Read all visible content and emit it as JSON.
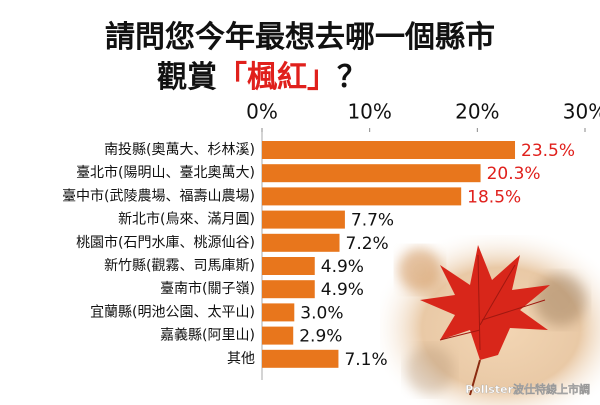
{
  "chart_data": {
    "type": "hbar",
    "title": [
      {
        "text": "請問您今年最想去哪一個縣市",
        "color": "#111111"
      },
      {
        "text": "觀賞",
        "color": "#111111"
      },
      {
        "text": "「楓紅」",
        "color": "#e0201c"
      },
      {
        "text": "？",
        "color": "#111111"
      }
    ],
    "categories": [
      "南投縣(奧萬大、杉林溪)",
      "臺北市(陽明山、臺北奧萬大)",
      "臺中市(武陵農場、福壽山農場)",
      "新北市(烏來、滿月圓)",
      "桃園市(石門水庫、桃源仙谷)",
      "新竹縣(觀霧、司馬庫斯)",
      "臺南市(關子嶺)",
      "宜蘭縣(明池公園、太平山)",
      "嘉義縣(阿里山)",
      "其他"
    ],
    "values": [
      23.5,
      20.3,
      18.5,
      7.7,
      7.2,
      4.9,
      4.9,
      3.0,
      2.9,
      7.1
    ],
    "value_labels": [
      "23.5%",
      "20.3%",
      "18.5%",
      "7.7%",
      "7.2%",
      "4.9%",
      "4.9%",
      "3.0%",
      "2.9%",
      "7.1%"
    ],
    "value_label_colors": [
      "#e0201c",
      "#e0201c",
      "#e0201c",
      "#111111",
      "#111111",
      "#111111",
      "#111111",
      "#111111",
      "#111111",
      "#111111"
    ],
    "color": "#e8761c",
    "xlim": [
      0,
      30
    ],
    "xticks": [
      {
        "value": 0,
        "label": "0%"
      },
      {
        "value": 10,
        "label": "10%"
      },
      {
        "value": 20,
        "label": "20%"
      },
      {
        "value": 30,
        "label": "30%"
      }
    ],
    "grid": false,
    "source": "Pollster波仕特線上市調"
  }
}
